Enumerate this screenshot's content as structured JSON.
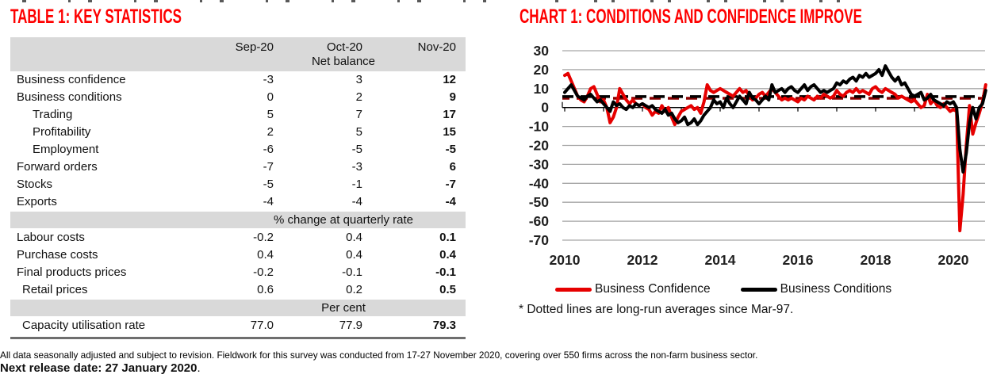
{
  "page": {
    "footer_note": "All data seasonally adjusted and subject to revision. Fieldwork for this survey was conducted from 17-27 November 2020, covering over 550 firms across the non-farm business sector.",
    "next_release_bold": "Next release date: 27 January 2020",
    "next_release_suffix": "."
  },
  "colors": {
    "accent_red": "#fe0000",
    "confidence_red": "#e60000",
    "conditions_black": "#000000",
    "dashed_avg_red": "#8b0000",
    "grid_gray": "#a6a6a6",
    "table_band_gray": "#d9d9d9"
  },
  "table": {
    "title": "TABLE 1: KEY STATISTICS",
    "columns": [
      "Sep-20",
      "Oct-20",
      "Nov-20"
    ],
    "header_subtitle": "Net balance",
    "sections": [
      {
        "label": null,
        "rows": [
          {
            "label": "Business confidence",
            "indent": 0,
            "values": [
              "-3",
              "3",
              "12"
            ]
          },
          {
            "label": "Business conditions",
            "indent": 0,
            "values": [
              "0",
              "2",
              "9"
            ]
          },
          {
            "label": "Trading",
            "indent": 2,
            "values": [
              "5",
              "7",
              "17"
            ]
          },
          {
            "label": "Profitability",
            "indent": 2,
            "values": [
              "2",
              "5",
              "15"
            ]
          },
          {
            "label": "Employment",
            "indent": 2,
            "values": [
              "-6",
              "-5",
              "-5"
            ]
          },
          {
            "label": "Forward orders",
            "indent": 0,
            "values": [
              "-7",
              "-3",
              "6"
            ]
          },
          {
            "label": "Stocks",
            "indent": 0,
            "values": [
              "-5",
              "-1",
              "-7"
            ]
          },
          {
            "label": "Exports",
            "indent": 0,
            "values": [
              "-4",
              "-4",
              "-4"
            ]
          }
        ]
      },
      {
        "label": "% change at quarterly rate",
        "rows": [
          {
            "label": "Labour costs",
            "indent": 0,
            "values": [
              "-0.2",
              "0.4",
              "0.1"
            ]
          },
          {
            "label": "Purchase costs",
            "indent": 0,
            "values": [
              "0.4",
              "0.4",
              "0.4"
            ]
          },
          {
            "label": "Final products prices",
            "indent": 0,
            "values": [
              "-0.2",
              "-0.1",
              "-0.1"
            ]
          },
          {
            "label": "Retail prices",
            "indent": 1,
            "values": [
              "0.6",
              "0.2",
              "0.5"
            ]
          }
        ]
      },
      {
        "label": "Per cent",
        "rows": [
          {
            "label": "Capacity utilisation rate",
            "indent": 1,
            "values": [
              "77.0",
              "77.9",
              "79.3"
            ]
          }
        ]
      }
    ]
  },
  "chart": {
    "title": "CHART 1: CONDITIONS AND CONFIDENCE IMPROVE",
    "footnote": "* Dotted lines are long-run averages since Mar-97."
  },
  "chart_data": {
    "type": "line",
    "title": "CHART 1: CONDITIONS AND CONFIDENCE IMPROVE",
    "x_frequency": "monthly",
    "x_start": "2010-01",
    "x_end": "2020-11",
    "x_tick_labels": [
      "2010",
      "2012",
      "2014",
      "2016",
      "2018",
      "2020"
    ],
    "y_ticks": [
      30,
      20,
      10,
      0,
      -10,
      -20,
      -30,
      -40,
      -50,
      -60,
      -70
    ],
    "ylim": [
      -70,
      30
    ],
    "grid": true,
    "legend_position": "bottom",
    "annotation": "Dotted lines are long-run averages since Mar-97",
    "series": [
      {
        "name": "Business Confidence",
        "color": "#e60000",
        "long_run_average": 4.9,
        "values": [
          17,
          18,
          14,
          10,
          6,
          4,
          3,
          6,
          10,
          11,
          7,
          3,
          4,
          0,
          -8,
          -5,
          0,
          10,
          7,
          4,
          2,
          4,
          2,
          1,
          2,
          0,
          -1,
          -4,
          -2,
          -3,
          1,
          -2,
          0,
          -5,
          -9,
          -5,
          -2,
          -1,
          0,
          1,
          -1,
          0,
          -3,
          3,
          12,
          9,
          8,
          9,
          10,
          9,
          8,
          7,
          6,
          8,
          10,
          8,
          9,
          6,
          4,
          5,
          7,
          8,
          6,
          8,
          10,
          8,
          6,
          4,
          5,
          4,
          5,
          4,
          3,
          5,
          4,
          6,
          5,
          4,
          6,
          5,
          7,
          6,
          5,
          6,
          9,
          7,
          6,
          8,
          9,
          8,
          10,
          8,
          9,
          8,
          7,
          10,
          11,
          9,
          8,
          10,
          9,
          8,
          7,
          5,
          6,
          5,
          4,
          3,
          4,
          2,
          0,
          1,
          7,
          2,
          4,
          1,
          0,
          2,
          0,
          -2,
          -1,
          -2,
          -65,
          -46,
          -20,
          1,
          -14,
          -8,
          -3,
          3,
          12
        ]
      },
      {
        "name": "Business Conditions",
        "color": "#000000",
        "long_run_average": 5.8,
        "values": [
          8,
          10,
          12,
          9,
          6,
          5,
          4,
          6,
          7,
          5,
          3,
          4,
          2,
          0,
          -2,
          3,
          1,
          2,
          0,
          -1,
          1,
          0,
          2,
          1,
          2,
          1,
          0,
          1,
          -1,
          -2,
          -3,
          -1,
          -4,
          -3,
          -6,
          -8,
          -7,
          -5,
          -9,
          -8,
          -6,
          -9,
          -7,
          -4,
          -2,
          0,
          4,
          2,
          3,
          0,
          5,
          2,
          0,
          3,
          6,
          4,
          2,
          8,
          5,
          4,
          2,
          4,
          6,
          4,
          12,
          8,
          9,
          10,
          8,
          10,
          11,
          9,
          8,
          10,
          12,
          9,
          11,
          12,
          10,
          8,
          9,
          8,
          9,
          10,
          13,
          12,
          14,
          13,
          15,
          16,
          14,
          17,
          16,
          18,
          16,
          17,
          18,
          20,
          17,
          22,
          19,
          16,
          14,
          16,
          12,
          13,
          10,
          7,
          6,
          7,
          8,
          4,
          5,
          7,
          4,
          3,
          2,
          1,
          3,
          2,
          3,
          0,
          -22,
          -34,
          -24,
          -8,
          0,
          -6,
          0,
          2,
          9
        ]
      }
    ]
  }
}
